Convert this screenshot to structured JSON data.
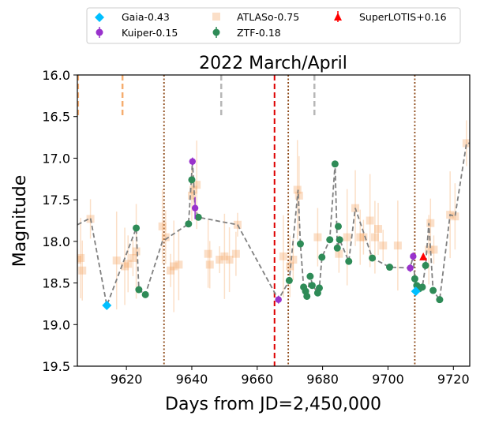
{
  "chart_data": {
    "type": "scatter",
    "title": "2022 March/April",
    "xlabel": "Days from JD=2,450,000",
    "ylabel": "Magnitude",
    "xlim": [
      9605,
      9725
    ],
    "ylim": [
      16.0,
      19.5
    ],
    "y_inverted": true,
    "xticks": [
      9620,
      9640,
      9660,
      9680,
      9700,
      9720
    ],
    "yticks": [
      16.0,
      16.5,
      17.0,
      17.5,
      18.0,
      18.5,
      19.0,
      19.5
    ],
    "xtick_labels": [
      "9620",
      "9640",
      "9660",
      "9680",
      "9700",
      "9720"
    ],
    "ytick_labels": [
      "16.0",
      "16.5",
      "17.0",
      "17.5",
      "18.0",
      "18.5",
      "19.0",
      "19.5"
    ],
    "legend_position": "top (above axes)",
    "series": [
      {
        "name": "Gaia-0.43",
        "marker": "diamond",
        "color": "#00bfff",
        "points": [
          [
            9614,
            18.77
          ],
          [
            9708.5,
            18.6
          ]
        ]
      },
      {
        "name": "Kuiper-0.15",
        "marker": "circle",
        "color": "#9932cc",
        "points": [
          [
            9640.2,
            17.04
          ],
          [
            9641,
            17.6
          ],
          [
            9666.5,
            18.7
          ],
          [
            9706.8,
            18.32
          ],
          [
            9707.7,
            18.18
          ]
        ]
      },
      {
        "name": "ATLASo-0.75",
        "marker": "square",
        "color": "#f4a460",
        "points": [
          [
            9605,
            18.22
          ],
          [
            9606,
            18.2
          ],
          [
            9606.5,
            18.35
          ],
          [
            9609,
            17.73
          ],
          [
            9617,
            18.23
          ],
          [
            9619.5,
            18.3
          ],
          [
            9620.5,
            18.27
          ],
          [
            9622,
            18.2
          ],
          [
            9623,
            18.12
          ],
          [
            9631,
            17.82
          ],
          [
            9632,
            17.95
          ],
          [
            9633.5,
            18.35
          ],
          [
            9634.5,
            18.3
          ],
          [
            9636,
            18.28
          ],
          [
            9640,
            17.45
          ],
          [
            9640.5,
            17.38
          ],
          [
            9641.5,
            17.32
          ],
          [
            9645,
            18.15
          ],
          [
            9645.5,
            18.28
          ],
          [
            9648.5,
            18.22
          ],
          [
            9650,
            18.18
          ],
          [
            9651.5,
            18.22
          ],
          [
            9653.5,
            18.15
          ],
          [
            9654,
            17.8
          ],
          [
            9668,
            18.18
          ],
          [
            9670,
            18.3
          ],
          [
            9671,
            18.22
          ],
          [
            9672.3,
            17.38
          ],
          [
            9672.8,
            17.45
          ],
          [
            9678.5,
            17.95
          ],
          [
            9685,
            18.15
          ],
          [
            9687.5,
            17.95
          ],
          [
            9690,
            17.6
          ],
          [
            9691.5,
            17.95
          ],
          [
            9692.5,
            17.95
          ],
          [
            9694.5,
            17.75
          ],
          [
            9696,
            17.95
          ],
          [
            9697,
            17.85
          ],
          [
            9698.5,
            18.05
          ],
          [
            9703,
            18.05
          ],
          [
            9712.5,
            18.1
          ],
          [
            9713,
            17.78
          ],
          [
            9714,
            18.1
          ],
          [
            9719,
            17.68
          ],
          [
            9720.5,
            17.7
          ],
          [
            9724,
            16.82
          ]
        ]
      },
      {
        "name": "ZTF-0.18",
        "marker": "circle",
        "color": "#2e8b57",
        "points": [
          [
            9623,
            17.84
          ],
          [
            9623.8,
            18.58
          ],
          [
            9625.8,
            18.64
          ],
          [
            9639,
            17.79
          ],
          [
            9640,
            17.26
          ],
          [
            9642,
            17.71
          ],
          [
            9669.8,
            18.47
          ],
          [
            9673.2,
            18.03
          ],
          [
            9674.2,
            18.55
          ],
          [
            9674.8,
            18.6
          ],
          [
            9675.2,
            18.66
          ],
          [
            9676.2,
            18.42
          ],
          [
            9676.8,
            18.53
          ],
          [
            9678.5,
            18.62
          ],
          [
            9679,
            18.56
          ],
          [
            9679.8,
            18.19
          ],
          [
            9682.2,
            17.98
          ],
          [
            9683.8,
            17.07
          ],
          [
            9684.5,
            18.08
          ],
          [
            9684.8,
            17.82
          ],
          [
            9685.2,
            17.98
          ],
          [
            9688,
            18.24
          ],
          [
            9695.2,
            18.2
          ],
          [
            9700.5,
            18.31
          ],
          [
            9708.2,
            18.45
          ],
          [
            9708.8,
            18.53
          ],
          [
            9709.5,
            18.57
          ],
          [
            9710.5,
            18.55
          ],
          [
            9711.5,
            18.29
          ],
          [
            9713.8,
            18.59
          ],
          [
            9715.8,
            18.7
          ]
        ]
      },
      {
        "name": "SuperLOTIS+0.16",
        "marker": "triangle",
        "color": "#ff0000",
        "points": [
          [
            9710.8,
            18.19
          ]
        ]
      }
    ],
    "trend_line": [
      [
        9605,
        17.8
      ],
      [
        9609,
        17.72
      ],
      [
        9614,
        18.77
      ],
      [
        9623,
        17.84
      ],
      [
        9623.8,
        18.58
      ],
      [
        9625.8,
        18.64
      ],
      [
        9631,
        18.0
      ],
      [
        9639,
        17.79
      ],
      [
        9640.2,
        17.04
      ],
      [
        9641,
        17.6
      ],
      [
        9642,
        17.71
      ],
      [
        9654,
        17.8
      ],
      [
        9666.5,
        18.7
      ],
      [
        9669.8,
        18.47
      ],
      [
        9672.5,
        17.38
      ],
      [
        9673.2,
        18.03
      ],
      [
        9674.2,
        18.55
      ],
      [
        9675.2,
        18.66
      ],
      [
        9676.2,
        18.42
      ],
      [
        9677,
        18.53
      ],
      [
        9678.5,
        18.62
      ],
      [
        9679,
        18.56
      ],
      [
        9679.8,
        18.19
      ],
      [
        9682.2,
        17.98
      ],
      [
        9683.8,
        17.07
      ],
      [
        9684.5,
        18.08
      ],
      [
        9685.2,
        17.98
      ],
      [
        9688,
        18.24
      ],
      [
        9690,
        17.6
      ],
      [
        9695.2,
        18.2
      ],
      [
        9700.5,
        18.31
      ],
      [
        9706.8,
        18.32
      ],
      [
        9707.7,
        18.18
      ],
      [
        9708.2,
        18.45
      ],
      [
        9708.8,
        18.6
      ],
      [
        9710.5,
        18.55
      ],
      [
        9711.5,
        18.29
      ],
      [
        9712.5,
        17.78
      ],
      [
        9713.8,
        18.59
      ],
      [
        9715.8,
        18.7
      ],
      [
        9719,
        17.68
      ],
      [
        9720.5,
        17.7
      ],
      [
        9724,
        16.82
      ],
      [
        9725,
        16.82
      ]
    ],
    "vertical_lines": [
      {
        "x": 9631.5,
        "style": "dotted",
        "color": "#8b4513"
      },
      {
        "x": 9665.3,
        "style": "dashed",
        "color": "#dd0000"
      },
      {
        "x": 9669.5,
        "style": "dotted",
        "color": "#8b4513"
      },
      {
        "x": 9708.2,
        "style": "dotted",
        "color": "#8b4513"
      }
    ],
    "top_markers": [
      {
        "x": 9605.2,
        "y_top": 16.0,
        "y_bottom": 16.5,
        "color": "#f4a460"
      },
      {
        "x": 9618.8,
        "y_top": 16.0,
        "y_bottom": 16.5,
        "color": "#f4a460"
      },
      {
        "x": 9649,
        "y_top": 16.0,
        "y_bottom": 16.5,
        "color": "#b0b0b0"
      },
      {
        "x": 9677.5,
        "y_top": 16.0,
        "y_bottom": 16.5,
        "color": "#b0b0b0"
      }
    ]
  }
}
